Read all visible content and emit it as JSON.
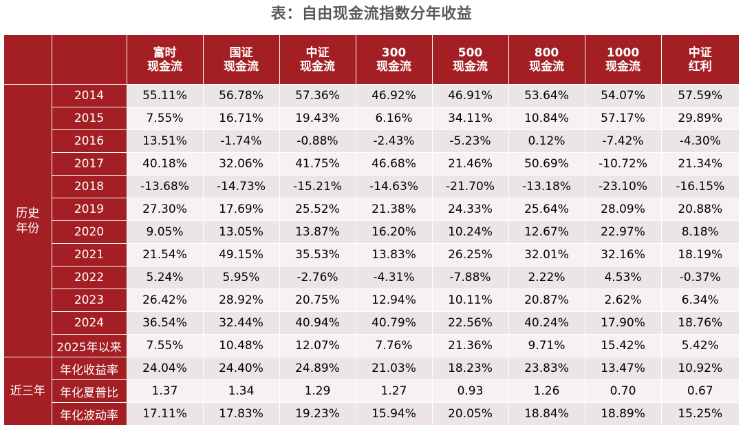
{
  "title": "表：自由现金流指数分年收益",
  "columns": [
    {
      "line1": "富时",
      "line2": "现金流"
    },
    {
      "line1": "国证",
      "line2": "现金流"
    },
    {
      "line1": "中证",
      "line2": "现金流"
    },
    {
      "line1": "300",
      "line2": "现金流"
    },
    {
      "line1": "500",
      "line2": "现金流"
    },
    {
      "line1": "800",
      "line2": "现金流"
    },
    {
      "line1": "1000",
      "line2": "现金流"
    },
    {
      "line1": "中证",
      "line2": "红利"
    }
  ],
  "groups": {
    "history": "历史年份",
    "recent": "近三年"
  },
  "rows": [
    {
      "label": "2014",
      "values": [
        "55.11%",
        "56.78%",
        "57.36%",
        "46.92%",
        "46.91%",
        "53.64%",
        "54.07%",
        "57.59%"
      ]
    },
    {
      "label": "2015",
      "values": [
        "7.55%",
        "16.71%",
        "19.43%",
        "6.16%",
        "34.11%",
        "10.84%",
        "57.17%",
        "29.89%"
      ]
    },
    {
      "label": "2016",
      "values": [
        "13.51%",
        "-1.74%",
        "-0.88%",
        "-2.43%",
        "-5.23%",
        "0.12%",
        "-7.42%",
        "-4.30%"
      ]
    },
    {
      "label": "2017",
      "values": [
        "40.18%",
        "32.06%",
        "41.75%",
        "46.68%",
        "21.46%",
        "50.69%",
        "-10.72%",
        "21.34%"
      ]
    },
    {
      "label": "2018",
      "values": [
        "-13.68%",
        "-14.73%",
        "-15.21%",
        "-14.63%",
        "-21.70%",
        "-13.18%",
        "-23.10%",
        "-16.15%"
      ]
    },
    {
      "label": "2019",
      "values": [
        "27.30%",
        "17.69%",
        "25.52%",
        "21.38%",
        "24.33%",
        "25.64%",
        "28.09%",
        "20.88%"
      ]
    },
    {
      "label": "2020",
      "values": [
        "9.05%",
        "13.05%",
        "13.87%",
        "16.20%",
        "10.24%",
        "12.67%",
        "22.97%",
        "8.18%"
      ]
    },
    {
      "label": "2021",
      "values": [
        "21.54%",
        "49.15%",
        "35.53%",
        "13.83%",
        "26.25%",
        "32.01%",
        "32.16%",
        "18.19%"
      ]
    },
    {
      "label": "2022",
      "values": [
        "5.24%",
        "5.95%",
        "-2.76%",
        "-4.31%",
        "-7.88%",
        "2.22%",
        "4.53%",
        "-0.37%"
      ]
    },
    {
      "label": "2023",
      "values": [
        "26.42%",
        "28.92%",
        "20.75%",
        "12.94%",
        "10.11%",
        "20.87%",
        "2.62%",
        "6.34%"
      ]
    },
    {
      "label": "2024",
      "values": [
        "36.54%",
        "32.44%",
        "40.94%",
        "40.79%",
        "22.56%",
        "40.24%",
        "17.90%",
        "18.76%"
      ]
    },
    {
      "label": "2025年以来",
      "values": [
        "7.55%",
        "10.48%",
        "12.07%",
        "7.76%",
        "21.36%",
        "9.71%",
        "15.42%",
        "5.42%"
      ]
    },
    {
      "label": "年化收益率",
      "values": [
        "24.04%",
        "24.40%",
        "24.89%",
        "21.03%",
        "18.23%",
        "23.83%",
        "13.47%",
        "10.92%"
      ]
    },
    {
      "label": "年化夏普比",
      "values": [
        "1.37",
        "1.34",
        "1.29",
        "1.27",
        "0.93",
        "1.26",
        "0.70",
        "0.67"
      ]
    },
    {
      "label": "年化波动率",
      "values": [
        "17.11%",
        "17.83%",
        "19.23%",
        "15.94%",
        "20.05%",
        "18.84%",
        "18.89%",
        "15.25%"
      ]
    }
  ],
  "colors": {
    "header_bg": "#a31f24",
    "row_odd": "#ece5e5",
    "row_even": "#f6f2f2"
  }
}
